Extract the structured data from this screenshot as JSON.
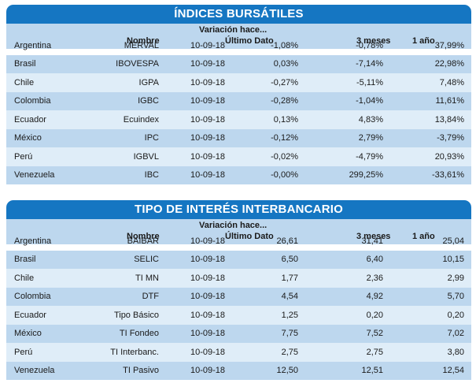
{
  "indices": {
    "title": "ÍNDICES BURSÁTILES",
    "header": {
      "variation": "Variación hace...",
      "name": "Nombre",
      "last": "Último Dato",
      "three_months": "3 meses",
      "one_year": "1 año"
    },
    "rows": [
      {
        "country": "Argentina",
        "name": "MERVAL",
        "date": "10-09-18",
        "last": "-1,08%",
        "three_months": "-0,78%",
        "one_year": "37,99%"
      },
      {
        "country": "Brasil",
        "name": "IBOVESPA",
        "date": "10-09-18",
        "last": "0,03%",
        "three_months": "-7,14%",
        "one_year": "22,98%"
      },
      {
        "country": "Chile",
        "name": "IGPA",
        "date": "10-09-18",
        "last": "-0,27%",
        "three_months": "-5,11%",
        "one_year": "7,48%"
      },
      {
        "country": "Colombia",
        "name": "IGBC",
        "date": "10-09-18",
        "last": "-0,28%",
        "three_months": "-1,04%",
        "one_year": "11,61%"
      },
      {
        "country": "Ecuador",
        "name": "Ecuindex",
        "date": "10-09-18",
        "last": "0,13%",
        "three_months": "4,83%",
        "one_year": "13,84%"
      },
      {
        "country": "México",
        "name": "IPC",
        "date": "10-09-18",
        "last": "-0,12%",
        "three_months": "2,79%",
        "one_year": "-3,79%"
      },
      {
        "country": "Perú",
        "name": "IGBVL",
        "date": "10-09-18",
        "last": "-0,02%",
        "three_months": "-4,79%",
        "one_year": "20,93%"
      },
      {
        "country": "Venezuela",
        "name": "IBC",
        "date": "10-09-18",
        "last": "-0,00%",
        "three_months": "299,25%",
        "one_year": "-33,61%"
      }
    ]
  },
  "rates": {
    "title": "TIPO DE INTERÉS INTERBANCARIO",
    "header": {
      "variation": "Variación hace...",
      "name": "Nombre",
      "last": "Último Dato",
      "three_months": "3 meses",
      "one_year": "1 año"
    },
    "rows": [
      {
        "country": "Argentina",
        "name": "BAIBAR",
        "date": "10-09-18",
        "last": "26,61",
        "three_months": "31,41",
        "one_year": "25,04"
      },
      {
        "country": "Brasil",
        "name": "SELIC",
        "date": "10-09-18",
        "last": "6,50",
        "three_months": "6,40",
        "one_year": "10,15"
      },
      {
        "country": "Chile",
        "name": "TI MN",
        "date": "10-09-18",
        "last": "1,77",
        "three_months": "2,36",
        "one_year": "2,99"
      },
      {
        "country": "Colombia",
        "name": "DTF",
        "date": "10-09-18",
        "last": "4,54",
        "three_months": "4,92",
        "one_year": "5,70"
      },
      {
        "country": "Ecuador",
        "name": "Tipo Básico",
        "date": "10-09-18",
        "last": "1,25",
        "three_months": "0,20",
        "one_year": "0,20"
      },
      {
        "country": "México",
        "name": "TI Fondeo",
        "date": "10-09-18",
        "last": "7,75",
        "three_months": "7,52",
        "one_year": "7,02"
      },
      {
        "country": "Perú",
        "name": "TI Interbanc.",
        "date": "10-09-18",
        "last": "2,75",
        "three_months": "2,75",
        "one_year": "3,80"
      },
      {
        "country": "Venezuela",
        "name": "TI Pasivo",
        "date": "10-09-18",
        "last": "12,50",
        "three_months": "12,51",
        "one_year": "12,54"
      }
    ]
  }
}
